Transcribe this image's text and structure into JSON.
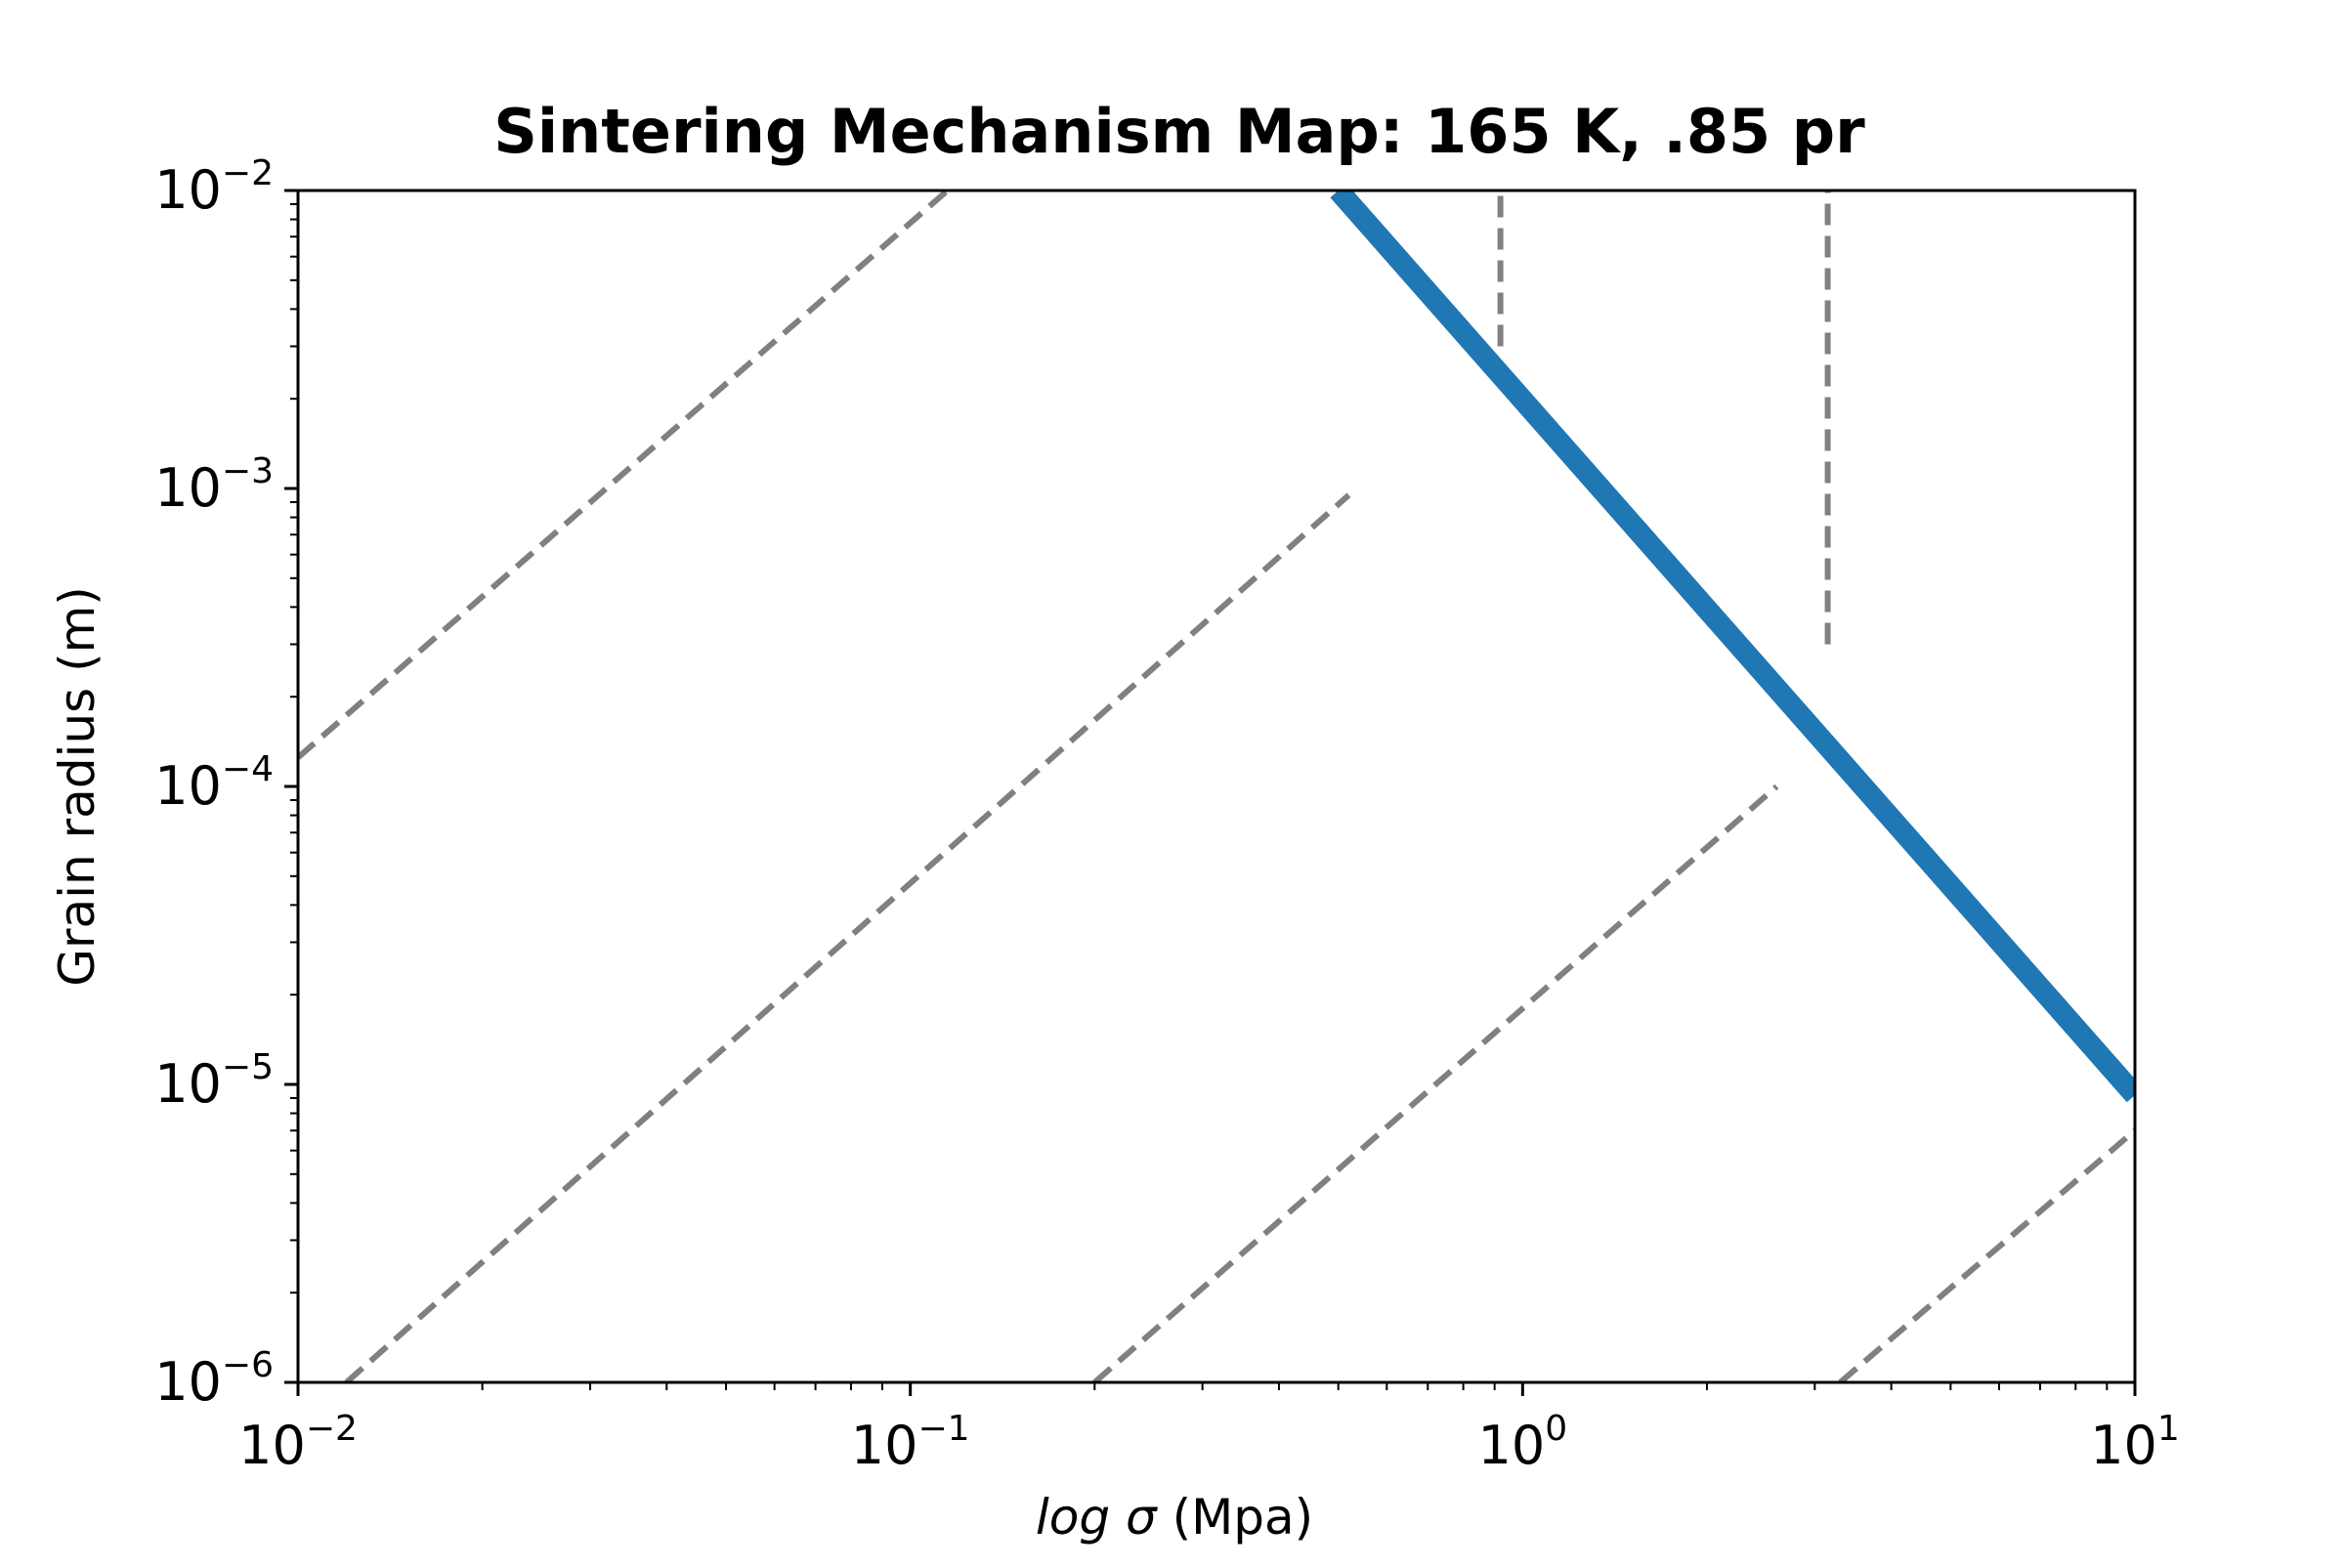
{
  "chart_data": {
    "type": "line",
    "title": "Sintering Mechanism Map: 165 K, .85 pr",
    "xlabel": {
      "italic": "log σ",
      "rest": " (Mpa)"
    },
    "ylabel": "Grain radius (m)",
    "xscale": "log",
    "yscale": "log",
    "xlim": [
      0.01,
      10
    ],
    "ylim": [
      1e-06,
      0.01
    ],
    "grid": false,
    "legend": false,
    "x_ticks": [
      {
        "base": "10",
        "exp": "−2",
        "value": 0.01
      },
      {
        "base": "10",
        "exp": "−1",
        "value": 0.1
      },
      {
        "base": "10",
        "exp": "0",
        "value": 1
      },
      {
        "base": "10",
        "exp": "1",
        "value": 10
      }
    ],
    "y_ticks": [
      {
        "base": "10",
        "exp": "−6",
        "value": 1e-06
      },
      {
        "base": "10",
        "exp": "−5",
        "value": 1e-05
      },
      {
        "base": "10",
        "exp": "−4",
        "value": 0.0001
      },
      {
        "base": "10",
        "exp": "−3",
        "value": 0.001
      },
      {
        "base": "10",
        "exp": "−2",
        "value": 0.01
      }
    ],
    "colors": {
      "boundary": "#1f77b4",
      "contour": "#808080"
    },
    "series": [
      {
        "role": "boundary",
        "style": "solid",
        "x": [
          0.5,
          10
        ],
        "y": [
          0.01,
          9.2e-06
        ]
      },
      {
        "role": "contour",
        "style": "dashed",
        "x": [
          0.01,
          0.115
        ],
        "y": [
          0.000125,
          0.01
        ]
      },
      {
        "role": "contour",
        "style": "dashed",
        "x": [
          0.012,
          0.52
        ],
        "y": [
          1e-06,
          0.00095
        ]
      },
      {
        "role": "contour",
        "style": "dashed",
        "x": [
          0.2,
          2.6
        ],
        "y": [
          1e-06,
          0.0001
        ]
      },
      {
        "role": "contour",
        "style": "dashed",
        "x": [
          3.3,
          10
        ],
        "y": [
          1e-06,
          7e-06
        ]
      },
      {
        "role": "contour",
        "style": "dashed",
        "x": [
          0.92,
          0.92
        ],
        "y": [
          0.003,
          0.01
        ]
      },
      {
        "role": "contour",
        "style": "dashed",
        "x": [
          3.15,
          3.15
        ],
        "y": [
          0.0003,
          0.01
        ]
      }
    ]
  }
}
